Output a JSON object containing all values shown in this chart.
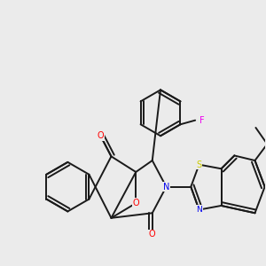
{
  "bg_color": "#ebebeb",
  "bond_color": "#1a1a1a",
  "bond_width": 1.4,
  "atom_colors": {
    "O": "#ff0000",
    "N": "#0000ee",
    "S": "#cccc00",
    "F": "#ee00ee",
    "C": "#1a1a1a"
  },
  "fig_size": [
    3.0,
    3.0
  ],
  "dpi": 100
}
